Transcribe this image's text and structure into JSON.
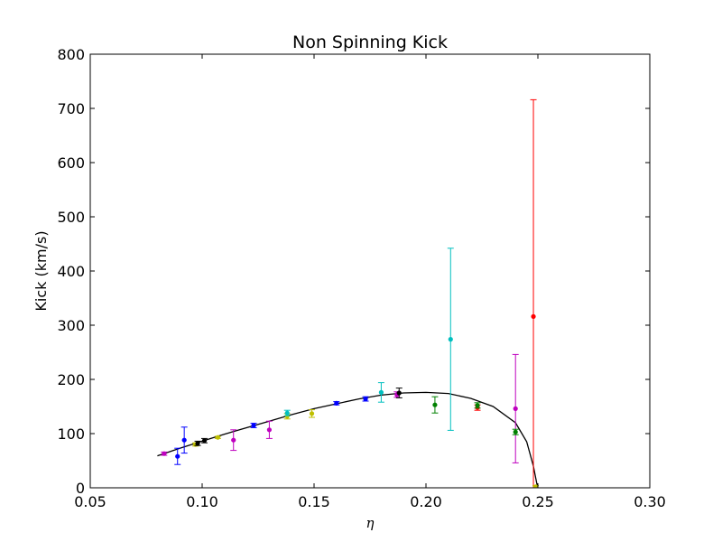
{
  "chart_data": {
    "type": "scatter",
    "title": "Non Spinning Kick",
    "xlabel": "η",
    "ylabel": "Kick (km/s)",
    "xlim": [
      0.05,
      0.3
    ],
    "ylim": [
      0,
      800
    ],
    "x_ticks": [
      "0.05",
      "0.10",
      "0.15",
      "0.20",
      "0.25",
      "0.30"
    ],
    "y_ticks": [
      "0",
      "100",
      "200",
      "300",
      "400",
      "500",
      "600",
      "700",
      "800"
    ],
    "grid": false,
    "fit_curve": {
      "color": "#000000",
      "points": [
        [
          0.08,
          59
        ],
        [
          0.09,
          73
        ],
        [
          0.1,
          86
        ],
        [
          0.11,
          99
        ],
        [
          0.12,
          111
        ],
        [
          0.13,
          123
        ],
        [
          0.14,
          135
        ],
        [
          0.15,
          146
        ],
        [
          0.16,
          155
        ],
        [
          0.17,
          164
        ],
        [
          0.18,
          171
        ],
        [
          0.19,
          175
        ],
        [
          0.2,
          176
        ],
        [
          0.21,
          174
        ],
        [
          0.22,
          165
        ],
        [
          0.23,
          150
        ],
        [
          0.24,
          120
        ],
        [
          0.245,
          85
        ],
        [
          0.248,
          40
        ],
        [
          0.2495,
          8
        ],
        [
          0.25,
          0
        ]
      ]
    },
    "points": [
      {
        "x": 0.083,
        "y": 63,
        "err": 3,
        "color": "#bf00bf"
      },
      {
        "x": 0.089,
        "y": 58,
        "err": 15,
        "color": "#0000ff"
      },
      {
        "x": 0.092,
        "y": 88,
        "err": 24,
        "color": "#0000ff"
      },
      {
        "x": 0.097,
        "y": 80,
        "err": 3,
        "color": "#bfbf00"
      },
      {
        "x": 0.098,
        "y": 82,
        "err": 4,
        "color": "#000000"
      },
      {
        "x": 0.101,
        "y": 87,
        "err": 4,
        "color": "#000000"
      },
      {
        "x": 0.107,
        "y": 93,
        "err": 2,
        "color": "#bfbf00"
      },
      {
        "x": 0.114,
        "y": 88,
        "err": 19,
        "color": "#bf00bf"
      },
      {
        "x": 0.123,
        "y": 115,
        "err": 4,
        "color": "#0000ff"
      },
      {
        "x": 0.13,
        "y": 107,
        "err": 16,
        "color": "#bf00bf"
      },
      {
        "x": 0.138,
        "y": 132,
        "err": 5,
        "color": "#bfbf00"
      },
      {
        "x": 0.138,
        "y": 138,
        "err": 5,
        "color": "#00bfbf"
      },
      {
        "x": 0.149,
        "y": 137,
        "err": 7,
        "color": "#bfbf00"
      },
      {
        "x": 0.16,
        "y": 156,
        "err": 3,
        "color": "#0000ff"
      },
      {
        "x": 0.173,
        "y": 164,
        "err": 4,
        "color": "#0000ff"
      },
      {
        "x": 0.18,
        "y": 176,
        "err": 18,
        "color": "#00bfbf"
      },
      {
        "x": 0.187,
        "y": 172,
        "err": 5,
        "color": "#bf00bf"
      },
      {
        "x": 0.188,
        "y": 175,
        "err": 9,
        "color": "#000000"
      },
      {
        "x": 0.204,
        "y": 153,
        "err": 15,
        "color": "#008000"
      },
      {
        "x": 0.211,
        "y": 274,
        "err": 168,
        "color": "#00bfbf"
      },
      {
        "x": 0.223,
        "y": 148,
        "err": 5,
        "color": "#ff0000"
      },
      {
        "x": 0.223,
        "y": 152,
        "err": 5,
        "color": "#008000"
      },
      {
        "x": 0.24,
        "y": 146,
        "err": 100,
        "color": "#bf00bf"
      },
      {
        "x": 0.24,
        "y": 103,
        "err": 5,
        "color": "#008000"
      },
      {
        "x": 0.248,
        "y": 316,
        "err": 400,
        "color": "#ff0000"
      },
      {
        "x": 0.249,
        "y": 2,
        "err": 2,
        "color": "#bfbf00"
      }
    ]
  }
}
